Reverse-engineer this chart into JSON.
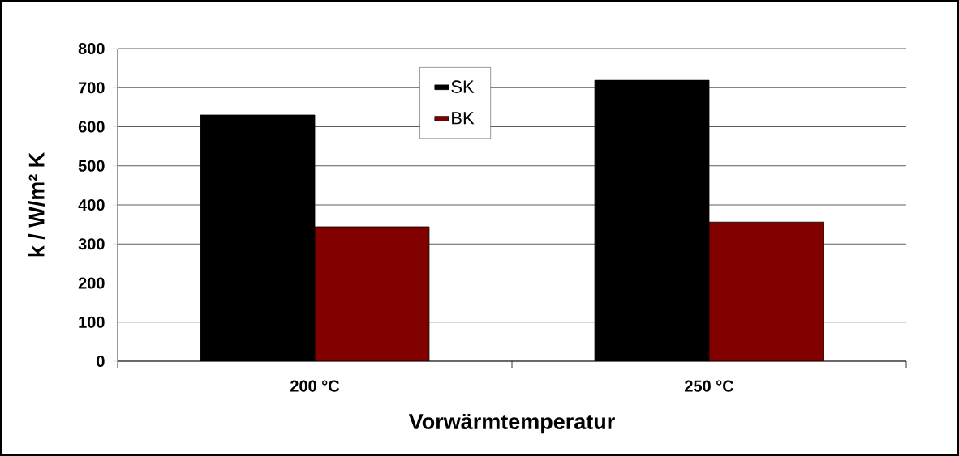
{
  "chart_data": {
    "type": "bar",
    "xlabel": "Vorwärmtemperatur",
    "ylabel": "k / W/m² K",
    "categories": [
      "200 °C",
      "250 °C"
    ],
    "series": [
      {
        "name": "SK",
        "color": "#000000",
        "values": [
          630,
          719
        ]
      },
      {
        "name": "BK",
        "color": "#800000",
        "values": [
          344,
          356
        ]
      }
    ],
    "ylim": [
      0,
      800
    ],
    "yticks": [
      0,
      100,
      200,
      300,
      400,
      500,
      600,
      700,
      800
    ],
    "grid": "y",
    "legend": "top"
  }
}
